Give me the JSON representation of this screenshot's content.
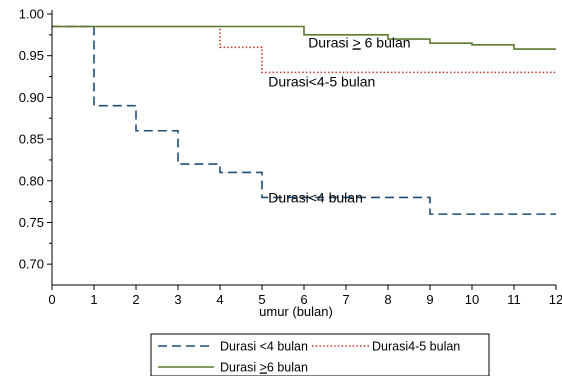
{
  "chart_data": {
    "type": "line",
    "xlabel": "umur (bulan)",
    "ylabel": "",
    "title": "",
    "xlim": [
      0,
      12
    ],
    "ylim": [
      0.675,
      1.0
    ],
    "x_ticks": [
      0,
      1,
      2,
      3,
      4,
      5,
      6,
      7,
      8,
      9,
      10,
      11,
      12
    ],
    "y_tick_labels": [
      "1.00",
      "0.95",
      "0.90",
      "0.85",
      "0.80",
      "0.75",
      "0.70"
    ],
    "y_ticks": [
      1.0,
      0.95,
      0.9,
      0.85,
      0.8,
      0.75,
      0.7
    ],
    "grid": false,
    "legend_position": "bottom",
    "series": [
      {
        "name": "Durasi <4 bulan",
        "style": "dashed",
        "color": "#1f4e79",
        "step_x": [
          0,
          1,
          2,
          3,
          4,
          5,
          9,
          12
        ],
        "step_y": [
          0.985,
          0.89,
          0.86,
          0.82,
          0.81,
          0.78,
          0.76,
          0.76
        ]
      },
      {
        "name": "Durasi4-5 bulan",
        "style": "dotted",
        "color": "#c0392b",
        "step_x": [
          0,
          4,
          5,
          12
        ],
        "step_y": [
          0.985,
          0.96,
          0.93,
          0.93
        ]
      },
      {
        "name": "Durasi ≥6 bulan",
        "style": "solid",
        "color": "#5a7a2e",
        "step_x": [
          0,
          6,
          8,
          9,
          10,
          11,
          12
        ],
        "step_y": [
          0.985,
          0.975,
          0.97,
          0.965,
          0.963,
          0.958,
          0.958
        ]
      }
    ],
    "annotations": [
      {
        "text_pre": "Durasi ",
        "text_underlined": ">",
        "text_post": " 6 bulan",
        "x": 6.1,
        "y": 0.96
      },
      {
        "text_pre": "Durasi<4-5 bulan",
        "text_underlined": "",
        "text_post": "",
        "x": 5.15,
        "y": 0.913
      },
      {
        "text_pre": "Durasi<4 bulan",
        "text_underlined": "",
        "text_post": "",
        "x": 5.15,
        "y": 0.774
      }
    ],
    "legend": [
      {
        "pre": "Durasi <4 bulan",
        "und": "",
        "post": ""
      },
      {
        "pre": "Durasi4-5 bulan",
        "und": "",
        "post": ""
      },
      {
        "pre": "Durasi ",
        "und": ">",
        "post": "6 bulan"
      }
    ]
  }
}
